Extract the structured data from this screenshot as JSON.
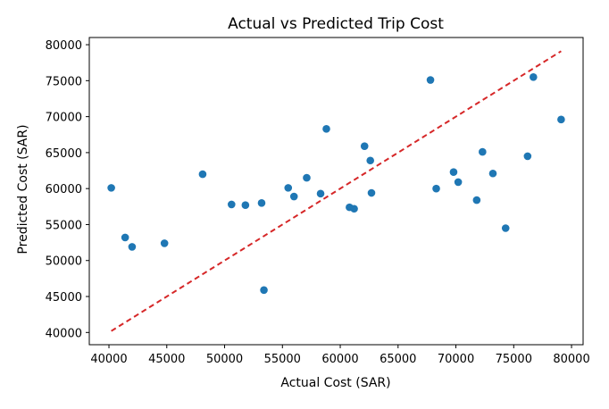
{
  "chart_data": {
    "type": "scatter",
    "title": "Actual vs Predicted Trip Cost",
    "xlabel": "Actual Cost (SAR)",
    "ylabel": "Predicted Cost (SAR)",
    "xlim": [
      38300,
      81000
    ],
    "ylim": [
      38300,
      81000
    ],
    "xticks": [
      40000,
      45000,
      50000,
      55000,
      60000,
      65000,
      70000,
      75000,
      80000
    ],
    "yticks": [
      40000,
      45000,
      50000,
      55000,
      60000,
      65000,
      70000,
      75000,
      80000
    ],
    "grid": false,
    "colors": {
      "points": "#1f77b4",
      "reference_line": "#d62728"
    },
    "reference_line": {
      "style": "dashed",
      "x": [
        40200,
        79100
      ],
      "y": [
        40200,
        79100
      ]
    },
    "points": [
      {
        "x": 40200,
        "y": 60100
      },
      {
        "x": 41400,
        "y": 53200
      },
      {
        "x": 42000,
        "y": 51900
      },
      {
        "x": 44800,
        "y": 52400
      },
      {
        "x": 48100,
        "y": 62000
      },
      {
        "x": 50600,
        "y": 57800
      },
      {
        "x": 51800,
        "y": 57700
      },
      {
        "x": 53200,
        "y": 58000
      },
      {
        "x": 53400,
        "y": 45900
      },
      {
        "x": 55500,
        "y": 60100
      },
      {
        "x": 56000,
        "y": 58900
      },
      {
        "x": 57100,
        "y": 61500
      },
      {
        "x": 58300,
        "y": 59300
      },
      {
        "x": 58800,
        "y": 68300
      },
      {
        "x": 60800,
        "y": 57400
      },
      {
        "x": 61200,
        "y": 57200
      },
      {
        "x": 62100,
        "y": 65900
      },
      {
        "x": 62600,
        "y": 63900
      },
      {
        "x": 62700,
        "y": 59400
      },
      {
        "x": 67800,
        "y": 75100
      },
      {
        "x": 68300,
        "y": 60000
      },
      {
        "x": 69800,
        "y": 62300
      },
      {
        "x": 70200,
        "y": 60900
      },
      {
        "x": 71800,
        "y": 58400
      },
      {
        "x": 72300,
        "y": 65100
      },
      {
        "x": 73200,
        "y": 62100
      },
      {
        "x": 74300,
        "y": 54500
      },
      {
        "x": 76200,
        "y": 64500
      },
      {
        "x": 76700,
        "y": 75500
      },
      {
        "x": 79100,
        "y": 69600
      }
    ]
  }
}
